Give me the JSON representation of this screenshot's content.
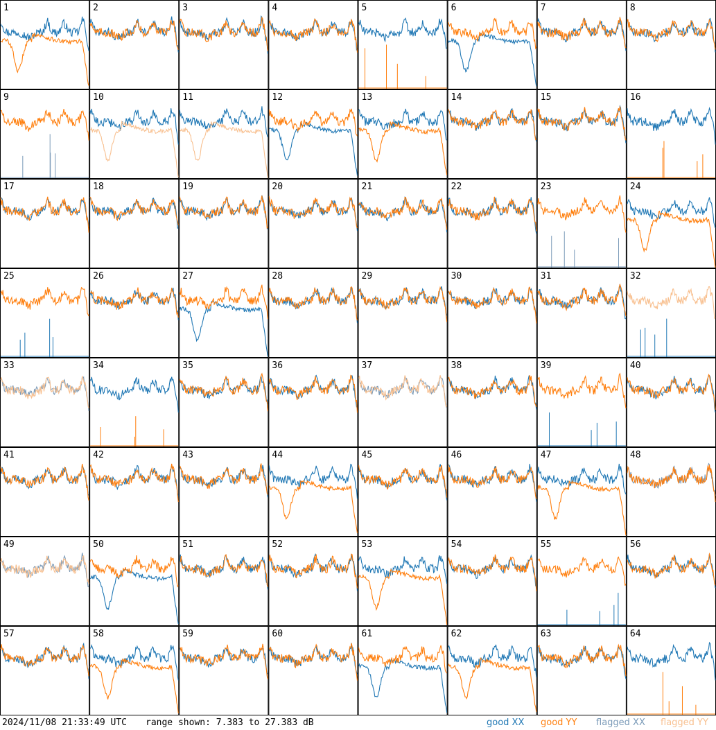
{
  "footer": {
    "timestamp": "2024/11/08 21:33:49 UTC",
    "range": "range shown: 7.383 to 27.383 dB"
  },
  "legend": [
    {
      "label": "good XX",
      "color": "#1f77b4"
    },
    {
      "label": "good YY",
      "color": "#ff7f0e"
    },
    {
      "label": "flagged XX",
      "color": "#7a9ab8"
    },
    {
      "label": "flagged YY",
      "color": "#f8c090"
    }
  ],
  "chart_data": {
    "type": "line",
    "grid": {
      "rows": 8,
      "cols": 8
    },
    "ylim": [
      7.383,
      27.383
    ],
    "y_unit": "dB",
    "series_keys": [
      "good XX",
      "good YY",
      "flagged XX",
      "flagged YY"
    ],
    "panels": [
      {
        "id": "1",
        "xx": "good",
        "yy": "good",
        "xx_shape": "normal",
        "yy_shape": "bad"
      },
      {
        "id": "2",
        "xx": "good",
        "yy": "good",
        "xx_shape": "normal",
        "yy_shape": "normal"
      },
      {
        "id": "3",
        "xx": "good",
        "yy": "good",
        "xx_shape": "normal",
        "yy_shape": "normal"
      },
      {
        "id": "4",
        "xx": "good",
        "yy": "good",
        "xx_shape": "normal",
        "yy_shape": "normal"
      },
      {
        "id": "5",
        "xx": "good",
        "yy": "good",
        "xx_shape": "normal",
        "yy_shape": "dead"
      },
      {
        "id": "6",
        "xx": "good",
        "yy": "good",
        "xx_shape": "bad",
        "yy_shape": "normal"
      },
      {
        "id": "7",
        "xx": "good",
        "yy": "good",
        "xx_shape": "normal",
        "yy_shape": "normal"
      },
      {
        "id": "8",
        "xx": "good",
        "yy": "good",
        "xx_shape": "normal",
        "yy_shape": "normal"
      },
      {
        "id": "9",
        "xx": "flagged",
        "yy": "good",
        "xx_shape": "dead",
        "yy_shape": "normal"
      },
      {
        "id": "10",
        "xx": "good",
        "yy": "flagged",
        "xx_shape": "normal",
        "yy_shape": "bad"
      },
      {
        "id": "11",
        "xx": "good",
        "yy": "flagged",
        "xx_shape": "normal",
        "yy_shape": "bad"
      },
      {
        "id": "12",
        "xx": "good",
        "yy": "good",
        "xx_shape": "bad",
        "yy_shape": "normal"
      },
      {
        "id": "13",
        "xx": "good",
        "yy": "good",
        "xx_shape": "normal",
        "yy_shape": "bad"
      },
      {
        "id": "14",
        "xx": "good",
        "yy": "good",
        "xx_shape": "normal",
        "yy_shape": "normal"
      },
      {
        "id": "15",
        "xx": "good",
        "yy": "good",
        "xx_shape": "normal",
        "yy_shape": "normal"
      },
      {
        "id": "16",
        "xx": "good",
        "yy": "good",
        "xx_shape": "normal",
        "yy_shape": "dead"
      },
      {
        "id": "17",
        "xx": "good",
        "yy": "good",
        "xx_shape": "normal",
        "yy_shape": "normal"
      },
      {
        "id": "18",
        "xx": "good",
        "yy": "good",
        "xx_shape": "normal",
        "yy_shape": "normal"
      },
      {
        "id": "19",
        "xx": "good",
        "yy": "good",
        "xx_shape": "normal",
        "yy_shape": "normal"
      },
      {
        "id": "20",
        "xx": "good",
        "yy": "good",
        "xx_shape": "normal",
        "yy_shape": "normal"
      },
      {
        "id": "21",
        "xx": "good",
        "yy": "good",
        "xx_shape": "normal",
        "yy_shape": "normal"
      },
      {
        "id": "22",
        "xx": "good",
        "yy": "good",
        "xx_shape": "normal",
        "yy_shape": "normal"
      },
      {
        "id": "23",
        "xx": "flagged",
        "yy": "good",
        "xx_shape": "dead",
        "yy_shape": "normal"
      },
      {
        "id": "24",
        "xx": "good",
        "yy": "good",
        "xx_shape": "normal",
        "yy_shape": "bad"
      },
      {
        "id": "25",
        "xx": "good",
        "yy": "good",
        "xx_shape": "dead",
        "yy_shape": "normal"
      },
      {
        "id": "26",
        "xx": "good",
        "yy": "good",
        "xx_shape": "normal",
        "yy_shape": "normal"
      },
      {
        "id": "27",
        "xx": "good",
        "yy": "good",
        "xx_shape": "bad",
        "yy_shape": "normal"
      },
      {
        "id": "28",
        "xx": "good",
        "yy": "good",
        "xx_shape": "normal",
        "yy_shape": "normal"
      },
      {
        "id": "29",
        "xx": "good",
        "yy": "good",
        "xx_shape": "normal",
        "yy_shape": "normal"
      },
      {
        "id": "30",
        "xx": "good",
        "yy": "good",
        "xx_shape": "normal",
        "yy_shape": "normal"
      },
      {
        "id": "31",
        "xx": "good",
        "yy": "good",
        "xx_shape": "normal",
        "yy_shape": "normal"
      },
      {
        "id": "32",
        "xx": "good",
        "yy": "flagged",
        "xx_shape": "dead",
        "yy_shape": "normal"
      },
      {
        "id": "33",
        "xx": "flagged",
        "yy": "flagged",
        "xx_shape": "normal",
        "yy_shape": "normal"
      },
      {
        "id": "34",
        "xx": "good",
        "yy": "good",
        "xx_shape": "normal",
        "yy_shape": "dead"
      },
      {
        "id": "35",
        "xx": "good",
        "yy": "good",
        "xx_shape": "normal",
        "yy_shape": "normal"
      },
      {
        "id": "36",
        "xx": "good",
        "yy": "good",
        "xx_shape": "normal",
        "yy_shape": "normal"
      },
      {
        "id": "37",
        "xx": "flagged",
        "yy": "flagged",
        "xx_shape": "normal",
        "yy_shape": "normal"
      },
      {
        "id": "38",
        "xx": "good",
        "yy": "good",
        "xx_shape": "normal",
        "yy_shape": "normal"
      },
      {
        "id": "39",
        "xx": "good",
        "yy": "good",
        "xx_shape": "dead",
        "yy_shape": "normal"
      },
      {
        "id": "40",
        "xx": "good",
        "yy": "good",
        "xx_shape": "normal",
        "yy_shape": "normal"
      },
      {
        "id": "41",
        "xx": "good",
        "yy": "good",
        "xx_shape": "normal",
        "yy_shape": "normal"
      },
      {
        "id": "42",
        "xx": "good",
        "yy": "good",
        "xx_shape": "normal",
        "yy_shape": "normal"
      },
      {
        "id": "43",
        "xx": "good",
        "yy": "good",
        "xx_shape": "normal",
        "yy_shape": "normal"
      },
      {
        "id": "44",
        "xx": "good",
        "yy": "good",
        "xx_shape": "normal",
        "yy_shape": "bad"
      },
      {
        "id": "45",
        "xx": "good",
        "yy": "good",
        "xx_shape": "normal",
        "yy_shape": "normal"
      },
      {
        "id": "46",
        "xx": "good",
        "yy": "good",
        "xx_shape": "normal",
        "yy_shape": "normal"
      },
      {
        "id": "47",
        "xx": "good",
        "yy": "good",
        "xx_shape": "normal",
        "yy_shape": "bad"
      },
      {
        "id": "48",
        "xx": "flagged",
        "yy": "good",
        "xx_shape": "normal",
        "yy_shape": "normal"
      },
      {
        "id": "49",
        "xx": "flagged",
        "yy": "flagged",
        "xx_shape": "normal",
        "yy_shape": "normal"
      },
      {
        "id": "50",
        "xx": "good",
        "yy": "good",
        "xx_shape": "bad",
        "yy_shape": "normal"
      },
      {
        "id": "51",
        "xx": "good",
        "yy": "good",
        "xx_shape": "normal",
        "yy_shape": "normal"
      },
      {
        "id": "52",
        "xx": "good",
        "yy": "good",
        "xx_shape": "normal",
        "yy_shape": "normal"
      },
      {
        "id": "53",
        "xx": "good",
        "yy": "good",
        "xx_shape": "normal",
        "yy_shape": "bad"
      },
      {
        "id": "54",
        "xx": "good",
        "yy": "good",
        "xx_shape": "normal",
        "yy_shape": "normal"
      },
      {
        "id": "55",
        "xx": "good",
        "yy": "good",
        "xx_shape": "dead",
        "yy_shape": "normal"
      },
      {
        "id": "56",
        "xx": "good",
        "yy": "good",
        "xx_shape": "normal",
        "yy_shape": "normal"
      },
      {
        "id": "57",
        "xx": "good",
        "yy": "good",
        "xx_shape": "normal",
        "yy_shape": "normal"
      },
      {
        "id": "58",
        "xx": "good",
        "yy": "good",
        "xx_shape": "normal",
        "yy_shape": "bad"
      },
      {
        "id": "59",
        "xx": "good",
        "yy": "good",
        "xx_shape": "normal",
        "yy_shape": "normal"
      },
      {
        "id": "60",
        "xx": "good",
        "yy": "good",
        "xx_shape": "normal",
        "yy_shape": "normal"
      },
      {
        "id": "61",
        "xx": "good",
        "yy": "good",
        "xx_shape": "bad",
        "yy_shape": "normal"
      },
      {
        "id": "62",
        "xx": "good",
        "yy": "good",
        "xx_shape": "normal",
        "yy_shape": "bad"
      },
      {
        "id": "63",
        "xx": "good",
        "yy": "good",
        "xx_shape": "normal",
        "yy_shape": "normal"
      },
      {
        "id": "64",
        "xx": "good",
        "yy": "good",
        "xx_shape": "normal",
        "yy_shape": "dead"
      }
    ]
  }
}
